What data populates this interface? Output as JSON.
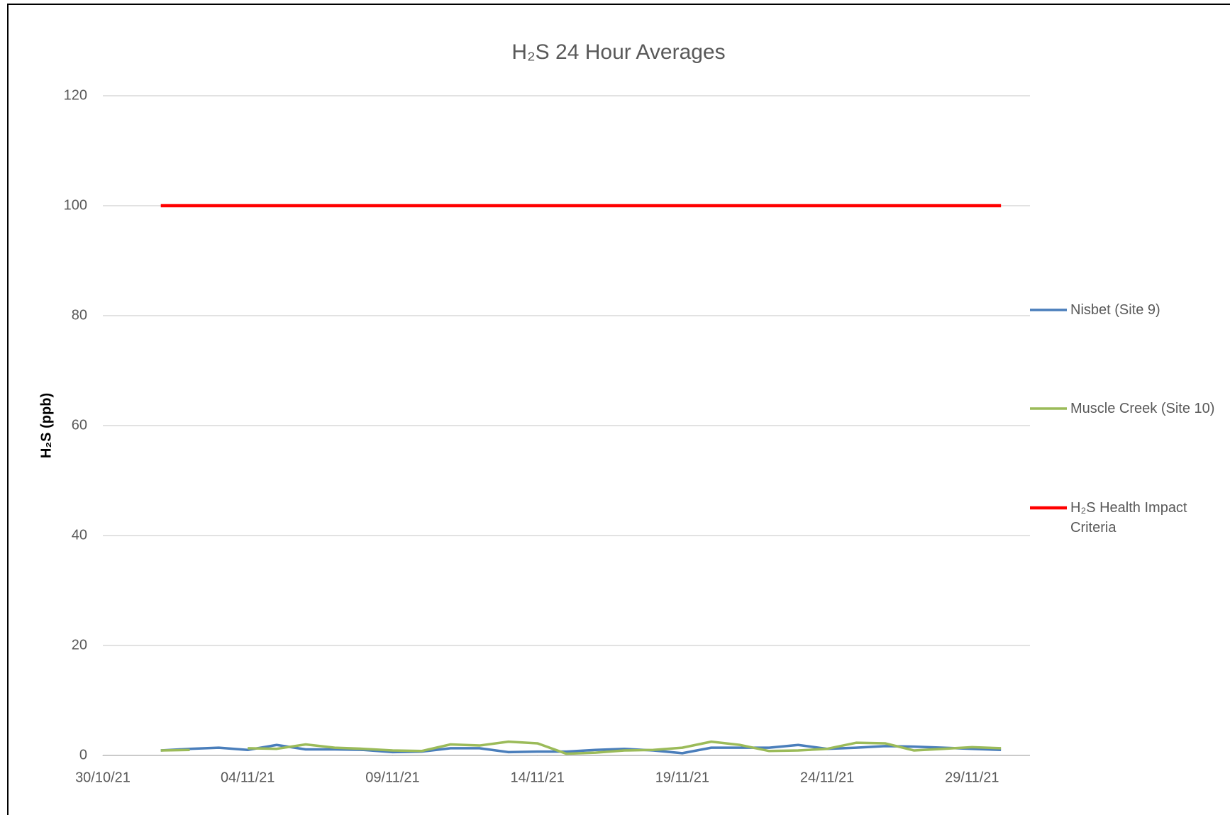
{
  "chart_data": {
    "type": "line",
    "title": "H₂S 24 Hour Averages",
    "y_label": "H₂S (ppb)",
    "x": [
      "2021-11-01",
      "2021-11-02",
      "2021-11-03",
      "2021-11-04",
      "2021-11-05",
      "2021-11-06",
      "2021-11-07",
      "2021-11-08",
      "2021-11-09",
      "2021-11-10",
      "2021-11-11",
      "2021-11-12",
      "2021-11-13",
      "2021-11-14",
      "2021-11-15",
      "2021-11-16",
      "2021-11-17",
      "2021-11-18",
      "2021-11-19",
      "2021-11-20",
      "2021-11-21",
      "2021-11-22",
      "2021-11-23",
      "2021-11-24",
      "2021-11-25",
      "2021-11-26",
      "2021-11-27",
      "2021-11-28",
      "2021-11-29",
      "2021-11-30"
    ],
    "series": [
      {
        "name": "Nisbet (Site 9)",
        "color": "#4a7ebb",
        "values": [
          0.9,
          1.2,
          1.4,
          1.0,
          1.9,
          1.1,
          1.1,
          1.0,
          0.6,
          0.7,
          1.3,
          1.3,
          0.6,
          0.7,
          0.7,
          1.0,
          1.2,
          0.9,
          0.4,
          1.4,
          1.4,
          1.4,
          1.9,
          1.2,
          1.4,
          1.7,
          1.6,
          1.4,
          1.2,
          1.0
        ]
      },
      {
        "name": "Muscle Creek (Site 10)",
        "color": "#9bbb59",
        "values": [
          0.9,
          1.0,
          null,
          1.3,
          1.2,
          2.0,
          1.4,
          1.2,
          0.9,
          0.8,
          2.0,
          1.8,
          2.5,
          2.2,
          0.3,
          0.5,
          0.9,
          1.0,
          1.4,
          2.5,
          1.9,
          0.8,
          0.9,
          1.2,
          2.3,
          2.2,
          0.9,
          1.2,
          1.5,
          1.3
        ]
      },
      {
        "name": "H₂S Health Impact Criteria",
        "color": "#ff0000",
        "values": [
          100,
          100,
          100,
          100,
          100,
          100,
          100,
          100,
          100,
          100,
          100,
          100,
          100,
          100,
          100,
          100,
          100,
          100,
          100,
          100,
          100,
          100,
          100,
          100,
          100,
          100,
          100,
          100,
          100,
          100
        ]
      }
    ],
    "xlim": [
      "2021-10-30",
      "2021-12-01"
    ],
    "xticks": [
      {
        "value": "2021-10-30",
        "label": "30/10/21"
      },
      {
        "value": "2021-11-04",
        "label": "04/11/21"
      },
      {
        "value": "2021-11-09",
        "label": "09/11/21"
      },
      {
        "value": "2021-11-14",
        "label": "14/11/21"
      },
      {
        "value": "2021-11-19",
        "label": "19/11/21"
      },
      {
        "value": "2021-11-24",
        "label": "24/11/21"
      },
      {
        "value": "2021-11-29",
        "label": "29/11/21"
      }
    ],
    "ylim": [
      0,
      120
    ],
    "yticks": [
      0,
      20,
      40,
      60,
      80,
      100,
      120
    ],
    "grid": true,
    "legend": "right"
  }
}
